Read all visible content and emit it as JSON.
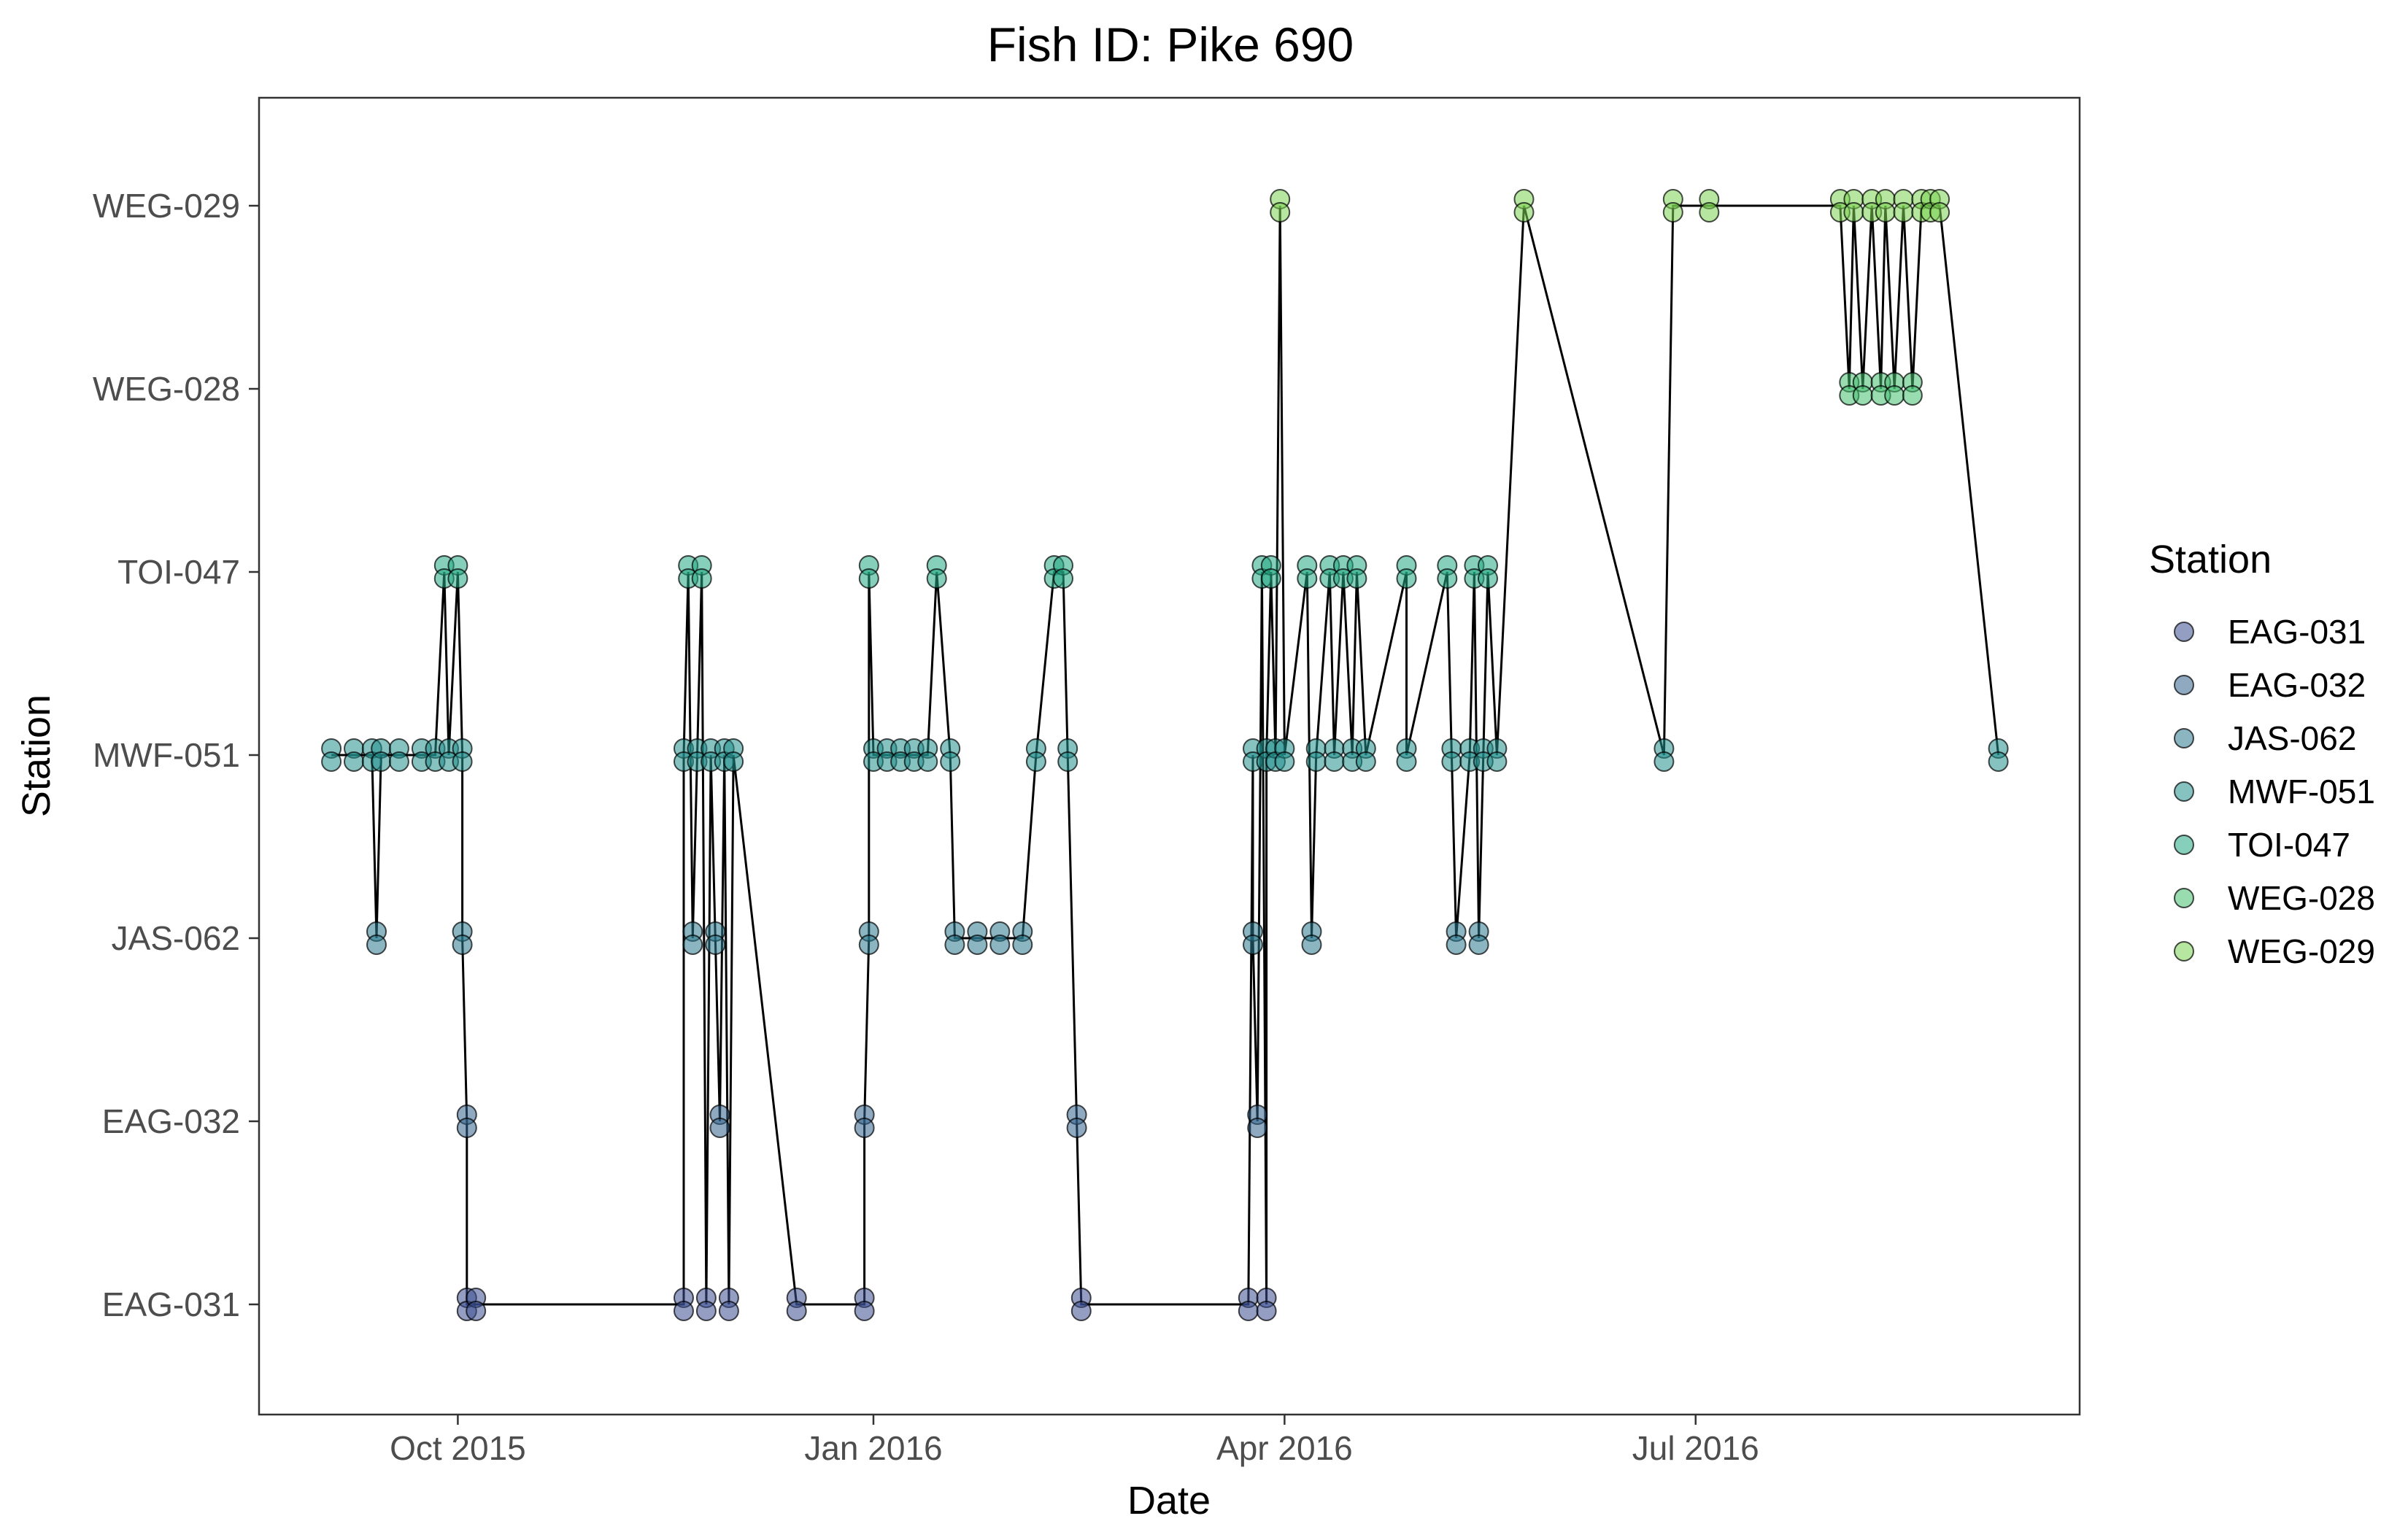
{
  "chart_data": {
    "type": "scatter",
    "title": "Fish ID: Pike 690",
    "xlabel": "Date",
    "ylabel": "Station",
    "x_axis": {
      "kind": "date",
      "ticks": [
        {
          "date": "2015-10-01",
          "label": "Oct 2015"
        },
        {
          "date": "2016-01-01",
          "label": "Jan 2016"
        },
        {
          "date": "2016-04-01",
          "label": "Apr 2016"
        },
        {
          "date": "2016-07-01",
          "label": "Jul 2016"
        }
      ],
      "xlim": [
        "2015-08-18",
        "2016-09-24"
      ]
    },
    "y_axis": {
      "kind": "categorical",
      "categories": [
        "EAG-031",
        "EAG-032",
        "JAS-062",
        "MWF-051",
        "TOI-047",
        "WEG-028",
        "WEG-029"
      ]
    },
    "legend": {
      "title": "Station",
      "position": "right",
      "entries": [
        {
          "label": "EAG-031",
          "color": "#3b4f8f"
        },
        {
          "label": "EAG-032",
          "color": "#33638d"
        },
        {
          "label": "JAS-062",
          "color": "#2a788e"
        },
        {
          "label": "MWF-051",
          "color": "#21908c"
        },
        {
          "label": "TOI-047",
          "color": "#22a884"
        },
        {
          "label": "WEG-028",
          "color": "#44bf70"
        },
        {
          "label": "WEG-029",
          "color": "#7ad151"
        }
      ]
    },
    "point_style": {
      "opacity": 0.55,
      "stroke": "#000000"
    },
    "line_color": "#000000",
    "grid": false,
    "series": [
      {
        "points": [
          {
            "date": "2015-09-03",
            "station": "MWF-051"
          },
          {
            "date": "2015-09-08",
            "station": "MWF-051"
          },
          {
            "date": "2015-09-12",
            "station": "MWF-051"
          },
          {
            "date": "2015-09-13",
            "station": "JAS-062"
          },
          {
            "date": "2015-09-14",
            "station": "MWF-051"
          },
          {
            "date": "2015-09-18",
            "station": "MWF-051"
          },
          {
            "date": "2015-09-23",
            "station": "MWF-051"
          },
          {
            "date": "2015-09-26",
            "station": "MWF-051"
          },
          {
            "date": "2015-09-28",
            "station": "TOI-047"
          },
          {
            "date": "2015-09-29",
            "station": "MWF-051"
          },
          {
            "date": "2015-10-01",
            "station": "TOI-047"
          },
          {
            "date": "2015-10-02",
            "station": "MWF-051"
          },
          {
            "date": "2015-10-02",
            "station": "JAS-062"
          },
          {
            "date": "2015-10-03",
            "station": "EAG-032"
          },
          {
            "date": "2015-10-03",
            "station": "EAG-031"
          },
          {
            "date": "2015-10-05",
            "station": "EAG-031"
          },
          {
            "date": "2015-11-20",
            "station": "EAG-031"
          },
          {
            "date": "2015-11-20",
            "station": "MWF-051"
          },
          {
            "date": "2015-11-21",
            "station": "TOI-047"
          },
          {
            "date": "2015-11-22",
            "station": "JAS-062"
          },
          {
            "date": "2015-11-23",
            "station": "MWF-051"
          },
          {
            "date": "2015-11-24",
            "station": "TOI-047"
          },
          {
            "date": "2015-11-25",
            "station": "EAG-031"
          },
          {
            "date": "2015-11-26",
            "station": "MWF-051"
          },
          {
            "date": "2015-11-27",
            "station": "JAS-062"
          },
          {
            "date": "2015-11-28",
            "station": "EAG-032"
          },
          {
            "date": "2015-11-29",
            "station": "MWF-051"
          },
          {
            "date": "2015-11-30",
            "station": "EAG-031"
          },
          {
            "date": "2015-12-01",
            "station": "MWF-051"
          },
          {
            "date": "2015-12-15",
            "station": "EAG-031"
          },
          {
            "date": "2015-12-30",
            "station": "EAG-031"
          },
          {
            "date": "2015-12-30",
            "station": "EAG-032"
          },
          {
            "date": "2015-12-31",
            "station": "JAS-062"
          },
          {
            "date": "2015-12-31",
            "station": "TOI-047"
          },
          {
            "date": "2016-01-01",
            "station": "MWF-051"
          },
          {
            "date": "2016-01-04",
            "station": "MWF-051"
          },
          {
            "date": "2016-01-07",
            "station": "MWF-051"
          },
          {
            "date": "2016-01-10",
            "station": "MWF-051"
          },
          {
            "date": "2016-01-13",
            "station": "MWF-051"
          },
          {
            "date": "2016-01-15",
            "station": "TOI-047"
          },
          {
            "date": "2016-01-18",
            "station": "MWF-051"
          },
          {
            "date": "2016-01-19",
            "station": "JAS-062"
          },
          {
            "date": "2016-01-24",
            "station": "JAS-062"
          },
          {
            "date": "2016-01-29",
            "station": "JAS-062"
          },
          {
            "date": "2016-02-03",
            "station": "JAS-062"
          },
          {
            "date": "2016-02-06",
            "station": "MWF-051"
          },
          {
            "date": "2016-02-10",
            "station": "TOI-047"
          },
          {
            "date": "2016-02-12",
            "station": "TOI-047"
          },
          {
            "date": "2016-02-13",
            "station": "MWF-051"
          },
          {
            "date": "2016-02-15",
            "station": "EAG-032"
          },
          {
            "date": "2016-02-16",
            "station": "EAG-031"
          },
          {
            "date": "2016-03-24",
            "station": "EAG-031"
          },
          {
            "date": "2016-03-25",
            "station": "MWF-051"
          },
          {
            "date": "2016-03-25",
            "station": "JAS-062"
          },
          {
            "date": "2016-03-26",
            "station": "EAG-032"
          },
          {
            "date": "2016-03-27",
            "station": "TOI-047"
          },
          {
            "date": "2016-03-28",
            "station": "EAG-031"
          },
          {
            "date": "2016-03-28",
            "station": "MWF-051"
          },
          {
            "date": "2016-03-29",
            "station": "TOI-047"
          },
          {
            "date": "2016-03-30",
            "station": "MWF-051"
          },
          {
            "date": "2016-03-31",
            "station": "WEG-029"
          },
          {
            "date": "2016-04-01",
            "station": "MWF-051"
          },
          {
            "date": "2016-04-06",
            "station": "TOI-047"
          },
          {
            "date": "2016-04-07",
            "station": "JAS-062"
          },
          {
            "date": "2016-04-08",
            "station": "MWF-051"
          },
          {
            "date": "2016-04-11",
            "station": "TOI-047"
          },
          {
            "date": "2016-04-12",
            "station": "MWF-051"
          },
          {
            "date": "2016-04-14",
            "station": "TOI-047"
          },
          {
            "date": "2016-04-16",
            "station": "MWF-051"
          },
          {
            "date": "2016-04-17",
            "station": "TOI-047"
          },
          {
            "date": "2016-04-19",
            "station": "MWF-051"
          },
          {
            "date": "2016-04-28",
            "station": "TOI-047"
          },
          {
            "date": "2016-04-28",
            "station": "MWF-051"
          },
          {
            "date": "2016-05-07",
            "station": "TOI-047"
          },
          {
            "date": "2016-05-08",
            "station": "MWF-051"
          },
          {
            "date": "2016-05-09",
            "station": "JAS-062"
          },
          {
            "date": "2016-05-12",
            "station": "MWF-051"
          },
          {
            "date": "2016-05-13",
            "station": "TOI-047"
          },
          {
            "date": "2016-05-14",
            "station": "JAS-062"
          },
          {
            "date": "2016-05-15",
            "station": "MWF-051"
          },
          {
            "date": "2016-05-16",
            "station": "TOI-047"
          },
          {
            "date": "2016-05-18",
            "station": "MWF-051"
          },
          {
            "date": "2016-05-24",
            "station": "WEG-029"
          },
          {
            "date": "2016-06-24",
            "station": "MWF-051"
          },
          {
            "date": "2016-06-26",
            "station": "WEG-029"
          },
          {
            "date": "2016-07-04",
            "station": "WEG-029"
          },
          {
            "date": "2016-08-02",
            "station": "WEG-029"
          },
          {
            "date": "2016-08-04",
            "station": "WEG-028"
          },
          {
            "date": "2016-08-05",
            "station": "WEG-029"
          },
          {
            "date": "2016-08-07",
            "station": "WEG-028"
          },
          {
            "date": "2016-08-09",
            "station": "WEG-029"
          },
          {
            "date": "2016-08-11",
            "station": "WEG-028"
          },
          {
            "date": "2016-08-12",
            "station": "WEG-029"
          },
          {
            "date": "2016-08-14",
            "station": "WEG-028"
          },
          {
            "date": "2016-08-16",
            "station": "WEG-029"
          },
          {
            "date": "2016-08-18",
            "station": "WEG-028"
          },
          {
            "date": "2016-08-20",
            "station": "WEG-029"
          },
          {
            "date": "2016-08-22",
            "station": "WEG-029"
          },
          {
            "date": "2016-08-24",
            "station": "WEG-029"
          },
          {
            "date": "2016-09-06",
            "station": "MWF-051"
          }
        ]
      }
    ]
  }
}
